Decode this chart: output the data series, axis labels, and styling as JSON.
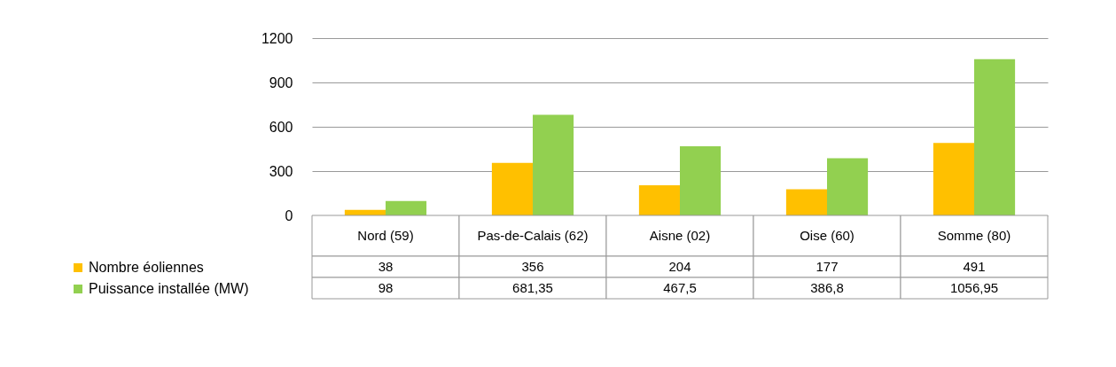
{
  "chart_data": {
    "type": "bar",
    "categories": [
      "Nord (59)",
      "Pas-de-Calais (62)",
      "Aisne (02)",
      "Oise (60)",
      "Somme (80)"
    ],
    "series": [
      {
        "name": "Nombre éoliennes",
        "color": "#ffc000",
        "values": [
          38,
          356,
          204,
          177,
          491
        ],
        "value_labels": [
          "38",
          "356",
          "204",
          "177",
          "491"
        ]
      },
      {
        "name": "Puissance installée (MW)",
        "color": "#92d050",
        "values": [
          98,
          681.35,
          467.5,
          386.8,
          1056.95
        ],
        "value_labels": [
          "98",
          "681,35",
          "467,5",
          "386,8",
          "1056,95"
        ]
      }
    ],
    "ylim": [
      0,
      1200
    ],
    "yticks": [
      0,
      300,
      600,
      900,
      1200
    ],
    "grid": "y",
    "legend": "bottom"
  }
}
